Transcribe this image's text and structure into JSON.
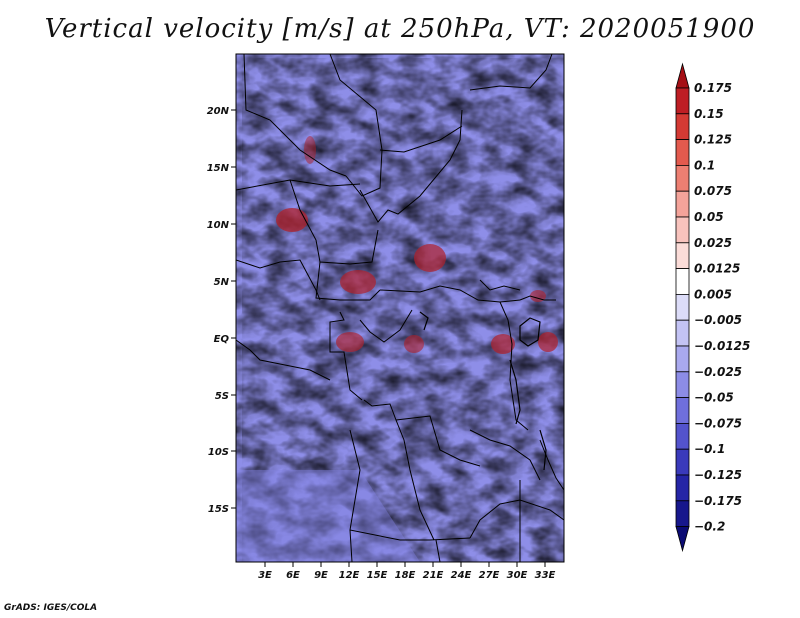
{
  "title": "Vertical velocity [m/s] at 250hPa, VT: 2020051900",
  "footer": "GrADS: IGES/COLA",
  "map": {
    "lat_labels": [
      "20N",
      "15N",
      "10N",
      "5N",
      "EQ",
      "5S",
      "10S",
      "15S"
    ],
    "lon_labels": [
      "3E",
      "6E",
      "9E",
      "12E",
      "15E",
      "18E",
      "21E",
      "24E",
      "27E",
      "30E",
      "33E"
    ]
  },
  "colorbar": {
    "labels": [
      "0.175",
      "0.15",
      "0.125",
      "0.1",
      "0.075",
      "0.05",
      "0.025",
      "0.0125",
      "0.005",
      "−0.005",
      "−0.0125",
      "−0.025",
      "−0.05",
      "−0.075",
      "−0.1",
      "−0.125",
      "−0.175",
      "−0.2"
    ],
    "colors": [
      "#a50f15",
      "#be1e24",
      "#d43a34",
      "#e35a4e",
      "#ed7f72",
      "#f4a39a",
      "#f8c3bd",
      "#fbdcd8",
      "#ffffff",
      "#dcdcf8",
      "#c3c3f4",
      "#a9a9ee",
      "#8c8ce6",
      "#6f6fdc",
      "#5353cd",
      "#3a3abb",
      "#2525a6",
      "#17178c",
      "#0b0b73"
    ]
  }
}
